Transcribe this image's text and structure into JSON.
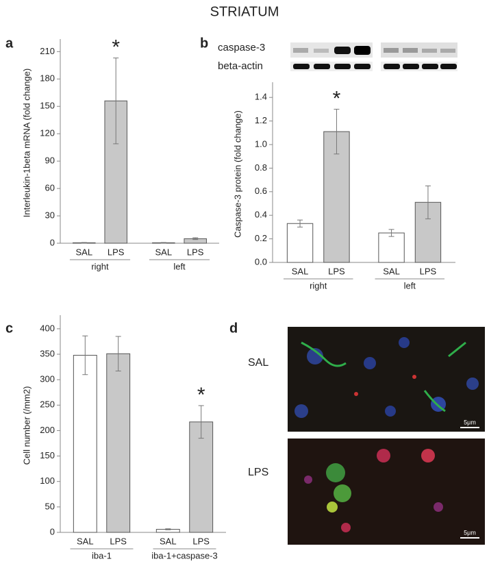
{
  "title": "STRIATUM",
  "chart_data": [
    {
      "type": "bar",
      "panel": "a",
      "ylabel": "Interleukin-1beta mRNA (fold change)",
      "categories": [
        "SAL",
        "LPS",
        "SAL",
        "LPS"
      ],
      "groups": [
        "right",
        "left"
      ],
      "values": [
        0.5,
        156,
        0.5,
        5
      ],
      "errors": [
        0.3,
        47,
        0.3,
        1
      ],
      "colors": [
        "#ffffff",
        "#c8c8c8",
        "#ffffff",
        "#c8c8c8"
      ],
      "annotations": [
        null,
        "*",
        null,
        null
      ],
      "ylim": [
        0,
        220
      ],
      "yticks": [
        0,
        30,
        60,
        90,
        120,
        150,
        180,
        210
      ]
    },
    {
      "type": "bar",
      "panel": "b",
      "ylabel": "Caspase-3 protein (fold change)",
      "blot_labels": [
        "caspase-3",
        "beta-actin"
      ],
      "categories": [
        "SAL",
        "LPS",
        "SAL",
        "LPS"
      ],
      "groups": [
        "right",
        "left"
      ],
      "values": [
        0.33,
        1.11,
        0.25,
        0.51
      ],
      "errors": [
        0.03,
        0.19,
        0.03,
        0.14
      ],
      "colors": [
        "#ffffff",
        "#c8c8c8",
        "#ffffff",
        "#c8c8c8"
      ],
      "annotations": [
        null,
        "*",
        null,
        null
      ],
      "ylim": [
        0,
        1.5
      ],
      "yticks": [
        {
          "value": 0,
          "label": "0.0"
        },
        0.2,
        0.4,
        0.6,
        0.8,
        {
          "value": 1,
          "label": "1.0"
        },
        1.2,
        1.4
      ]
    },
    {
      "type": "bar",
      "panel": "c",
      "ylabel": "Cell number (/mm2)",
      "categories": [
        "SAL",
        "LPS",
        "SAL",
        "LPS"
      ],
      "groups": [
        "iba-1",
        "iba-1+caspase-3"
      ],
      "values": [
        348,
        351,
        6,
        217
      ],
      "errors": [
        38,
        34,
        1,
        32
      ],
      "colors": [
        "#ffffff",
        "#c8c8c8",
        "#ffffff",
        "#c8c8c8"
      ],
      "annotations": [
        null,
        null,
        null,
        "*"
      ],
      "ylim": [
        0,
        420
      ],
      "yticks": [
        0,
        50,
        100,
        150,
        200,
        250,
        300,
        350,
        400
      ]
    }
  ],
  "panel_d": {
    "panel": "d",
    "rows": [
      {
        "label": "SAL",
        "scale": "5μm"
      },
      {
        "label": "LPS",
        "scale": "5μm"
      }
    ]
  }
}
